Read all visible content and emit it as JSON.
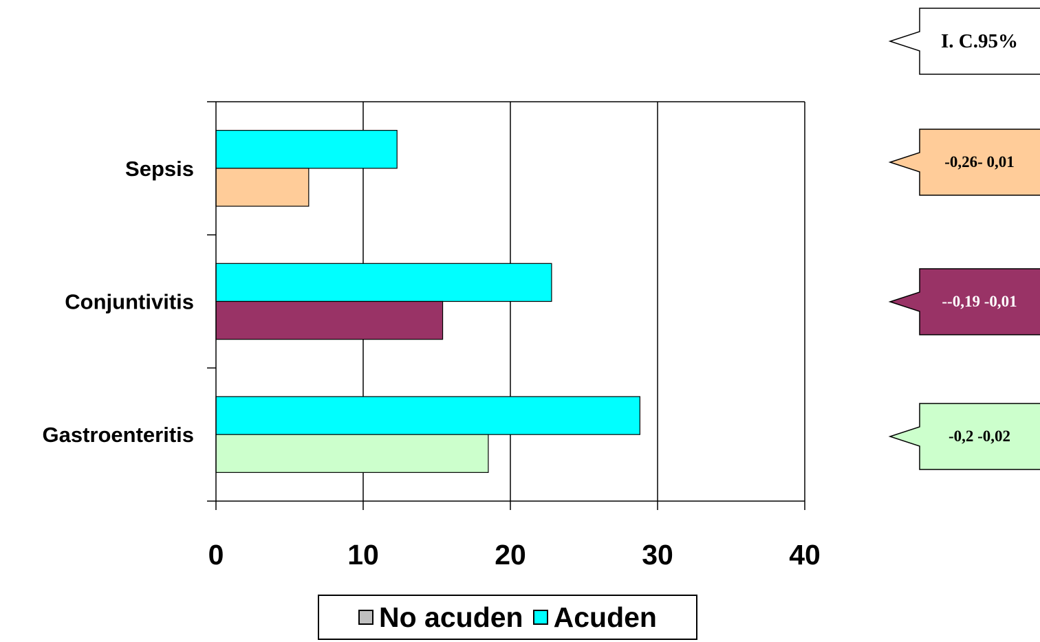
{
  "chart_data": {
    "type": "bar",
    "orientation": "horizontal",
    "categories": [
      "Sepsis",
      "Conjuntivitis",
      "Gastroenteritis"
    ],
    "series": [
      {
        "name": "No acuden",
        "values": [
          6.3,
          15.4,
          18.5
        ],
        "colors": [
          "#FFCC99",
          "#993366",
          "#CCFFCC"
        ],
        "legend_color": "#C0C0C0"
      },
      {
        "name": "Acuden",
        "values": [
          12.3,
          22.8,
          28.8
        ],
        "color": "#00FFFF"
      }
    ],
    "xlim": [
      0,
      40
    ],
    "xticks": [
      0,
      10,
      20,
      30,
      40
    ],
    "grid": true,
    "legend_position": "bottom",
    "title": "",
    "xlabel": "",
    "ylabel": ""
  },
  "callouts": {
    "header": {
      "text": "I. C.95%",
      "color": "#FFFFFF",
      "text_color": "#000000"
    },
    "items": [
      {
        "text": "-0,26- 0,01",
        "color": "#FFCC99",
        "text_color": "#000000"
      },
      {
        "text": "--0,19 -0,01",
        "color": "#993366",
        "text_color": "#FFFFFF"
      },
      {
        "text": "-0,2 -0,02",
        "color": "#CCFFCC",
        "text_color": "#000000"
      }
    ]
  },
  "legend": {
    "items": [
      {
        "label": "No acuden",
        "color": "#C0C0C0"
      },
      {
        "label": "Acuden",
        "color": "#00FFFF"
      }
    ]
  }
}
